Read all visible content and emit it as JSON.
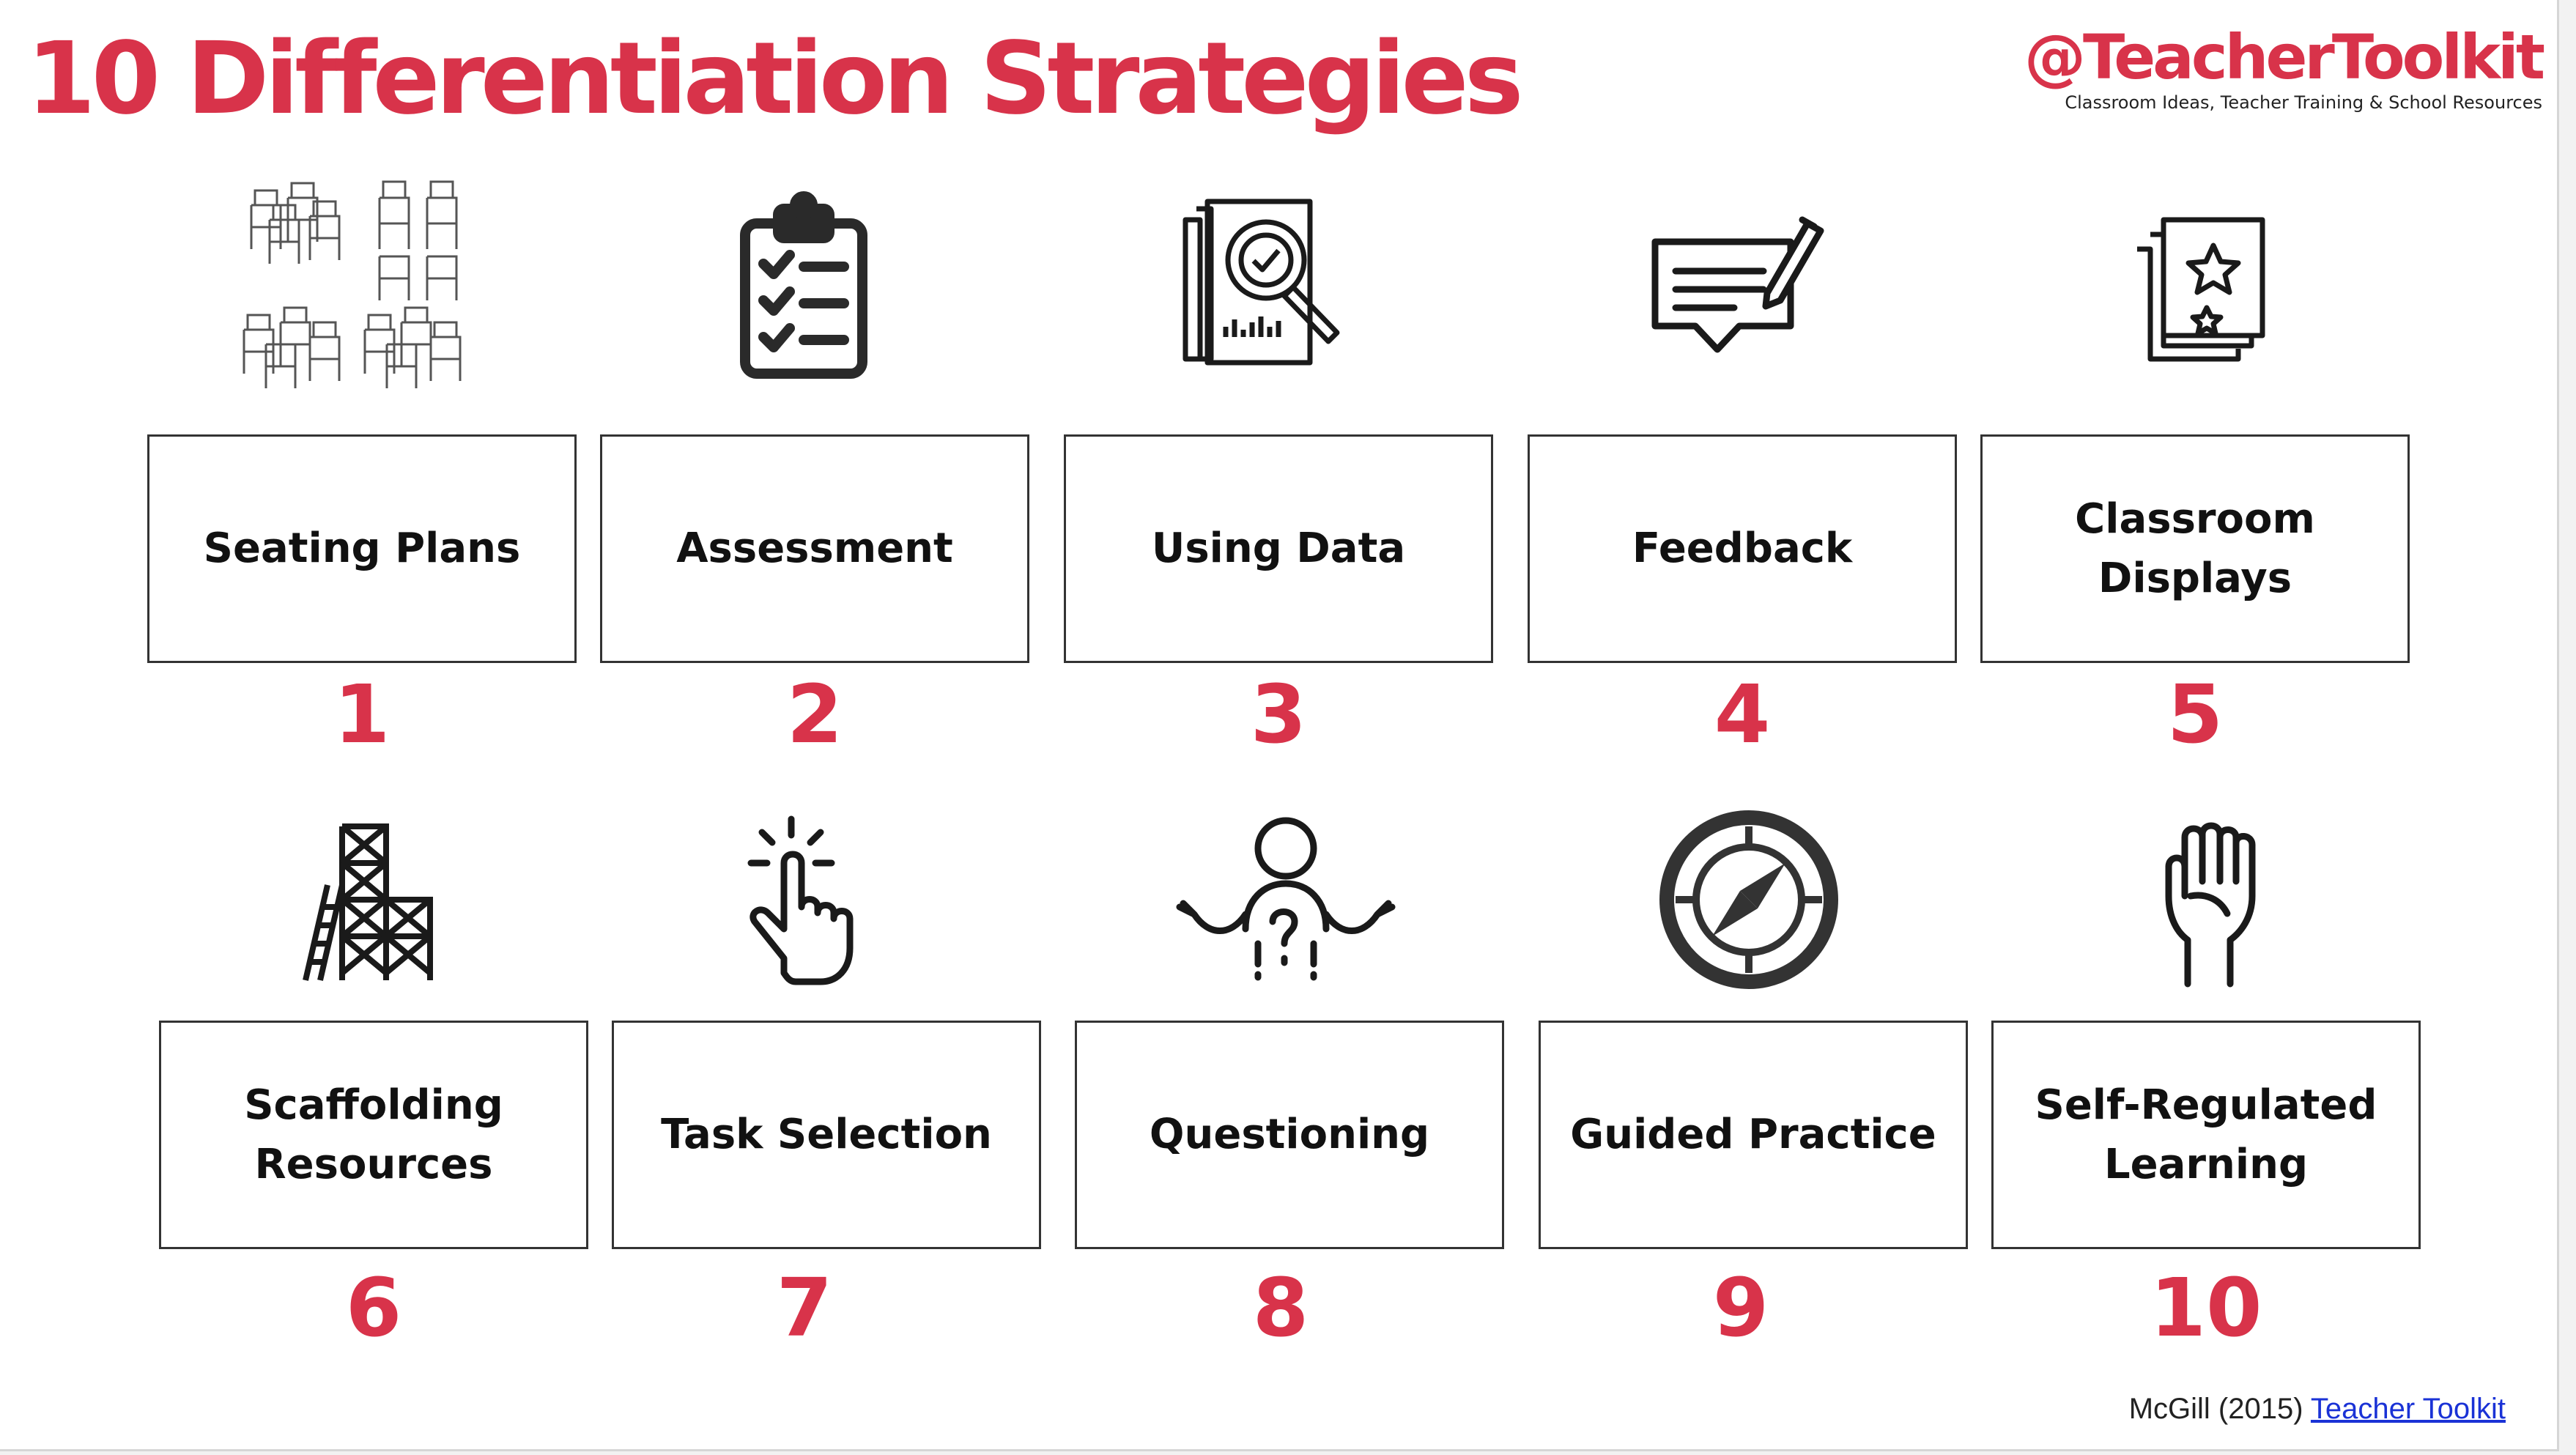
{
  "title": "10 Differentiation Strategies",
  "brand": {
    "handle": "@TeacherToolkit",
    "tagline": "Classroom Ideas, Teacher Training & School Resources"
  },
  "strategies": [
    {
      "label": "Seating Plans",
      "number": "1",
      "icon": "chairs-icon"
    },
    {
      "label": "Assessment",
      "number": "2",
      "icon": "clipboard-checklist-icon"
    },
    {
      "label": "Using Data",
      "number": "3",
      "icon": "data-analysis-icon"
    },
    {
      "label": "Feedback",
      "number": "4",
      "icon": "feedback-writing-icon"
    },
    {
      "label": "Classroom Displays",
      "number": "5",
      "icon": "display-star-icon"
    },
    {
      "label": "Scaffolding Resources",
      "number": "6",
      "icon": "scaffolding-icon"
    },
    {
      "label": "Task Selection",
      "number": "7",
      "icon": "pointing-hand-icon"
    },
    {
      "label": "Questioning",
      "number": "8",
      "icon": "questioning-person-icon"
    },
    {
      "label": "Guided Practice",
      "number": "9",
      "icon": "compass-icon"
    },
    {
      "label": "Self-Regulated Learning",
      "number": "10",
      "icon": "raised-fist-icon"
    }
  ],
  "credit": {
    "prefix": "McGill (2015)",
    "link_text": "Teacher Toolkit"
  },
  "colors": {
    "accent": "#d8334a",
    "text": "#111111",
    "link": "#1a32d6"
  }
}
